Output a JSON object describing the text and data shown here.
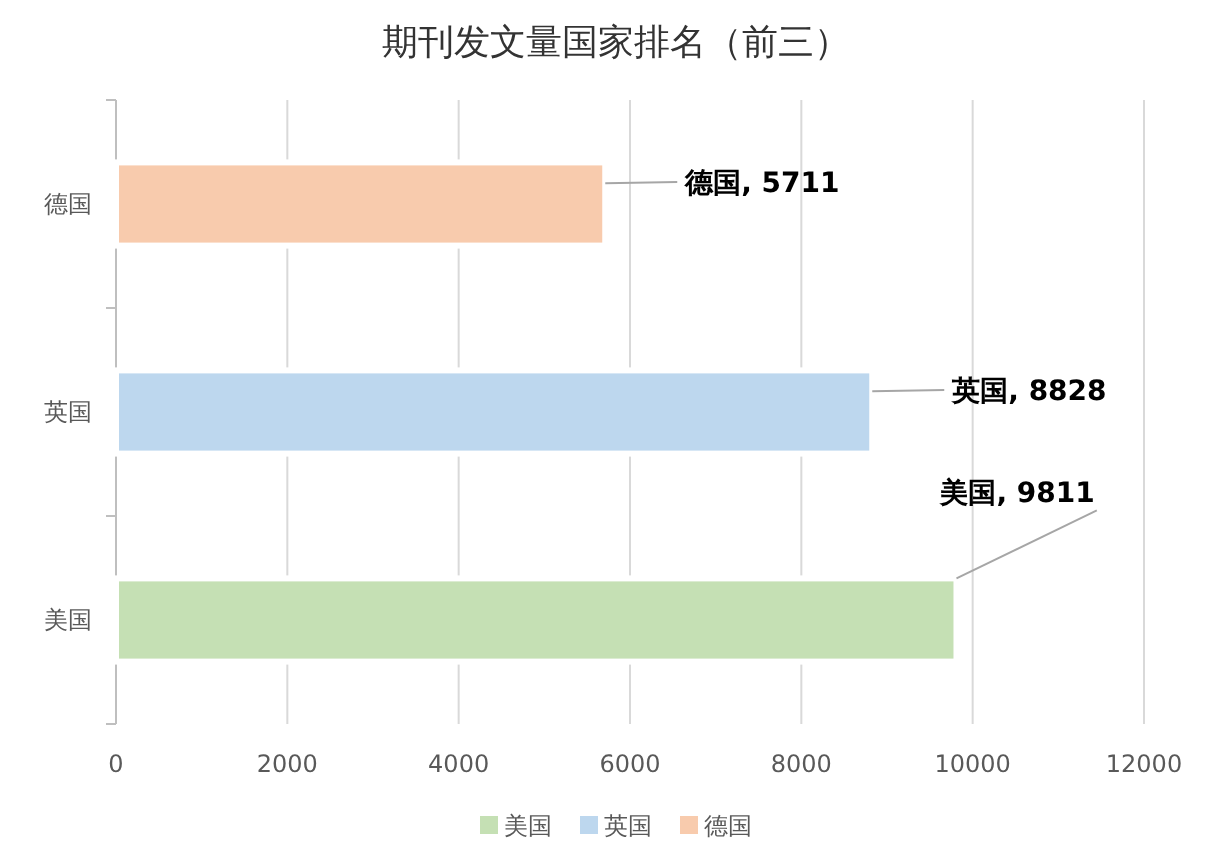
{
  "chart_data": {
    "type": "bar",
    "orientation": "horizontal",
    "title": "期刊发文量国家排名（前三）",
    "categories": [
      "德国",
      "英国",
      "美国"
    ],
    "series": [
      {
        "name": "美国",
        "color": "#c5e0b4",
        "values": [
          null,
          null,
          9811
        ],
        "value_labels": [
          null,
          null,
          "美国, 9811"
        ]
      },
      {
        "name": "英国",
        "color": "#bdd7ee",
        "values": [
          null,
          8828,
          null
        ],
        "value_labels": [
          null,
          "英国, 8828",
          null
        ]
      },
      {
        "name": "德国",
        "color": "#f8cbad",
        "values": [
          5711,
          null,
          null
        ],
        "value_labels": [
          "德国, 5711",
          null,
          null
        ]
      }
    ],
    "xlim": [
      0,
      12000
    ],
    "xticks": [
      0,
      2000,
      4000,
      6000,
      8000,
      10000,
      12000
    ],
    "grid": "x",
    "legend": "bottom"
  }
}
